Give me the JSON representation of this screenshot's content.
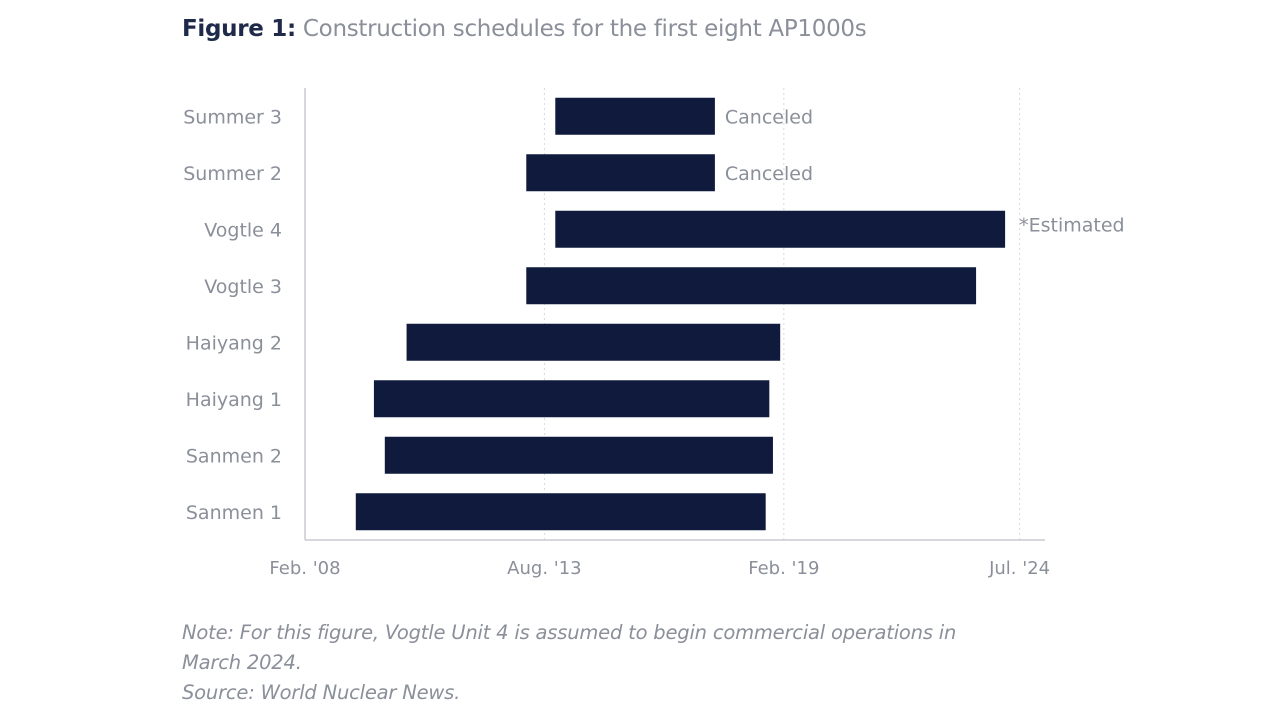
{
  "figure": {
    "label": "Figure 1:",
    "caption": "Construction schedules for the first eight AP1000s"
  },
  "chart_data": {
    "type": "bar",
    "orientation": "horizontal-range",
    "title": "Construction schedules for the first eight AP1000s",
    "xlabel": "",
    "ylabel": "",
    "grid": "vertical dashed",
    "bar_color": "#0f1a3d",
    "axis_color": "#c8ccd4",
    "text_color": "#8a8f99",
    "x_range": [
      "2008-02",
      "2025-02"
    ],
    "x_ticks": [
      {
        "date": "2008-02",
        "label": "Feb. '08"
      },
      {
        "date": "2013-08",
        "label": "Aug. '13"
      },
      {
        "date": "2019-02",
        "label": "Feb. '19"
      },
      {
        "date": "2024-07",
        "label": "Jul. '24"
      }
    ],
    "categories": [
      "Summer 3",
      "Summer 2",
      "Vogtle 4",
      "Vogtle 3",
      "Haiyang 2",
      "Haiyang 1",
      "Sanmen 2",
      "Sanmen 1"
    ],
    "series": [
      {
        "values": [
          {
            "start": "2013-11",
            "end": "2017-07",
            "annotation": "Canceled"
          },
          {
            "start": "2013-03",
            "end": "2017-07",
            "annotation": "Canceled"
          },
          {
            "start": "2013-11",
            "end": "2024-03",
            "annotation": "*Estimated"
          },
          {
            "start": "2013-03",
            "end": "2023-07",
            "annotation": ""
          },
          {
            "start": "2010-06",
            "end": "2019-01",
            "annotation": ""
          },
          {
            "start": "2009-09",
            "end": "2018-10",
            "annotation": ""
          },
          {
            "start": "2009-12",
            "end": "2018-11",
            "annotation": ""
          },
          {
            "start": "2009-04",
            "end": "2018-09",
            "annotation": ""
          }
        ]
      }
    ]
  },
  "note": {
    "line1": "Note: For this figure, Vogtle Unit 4 is assumed to begin commercial operations in",
    "line2": "March 2024.",
    "source": "Source: World Nuclear News."
  }
}
